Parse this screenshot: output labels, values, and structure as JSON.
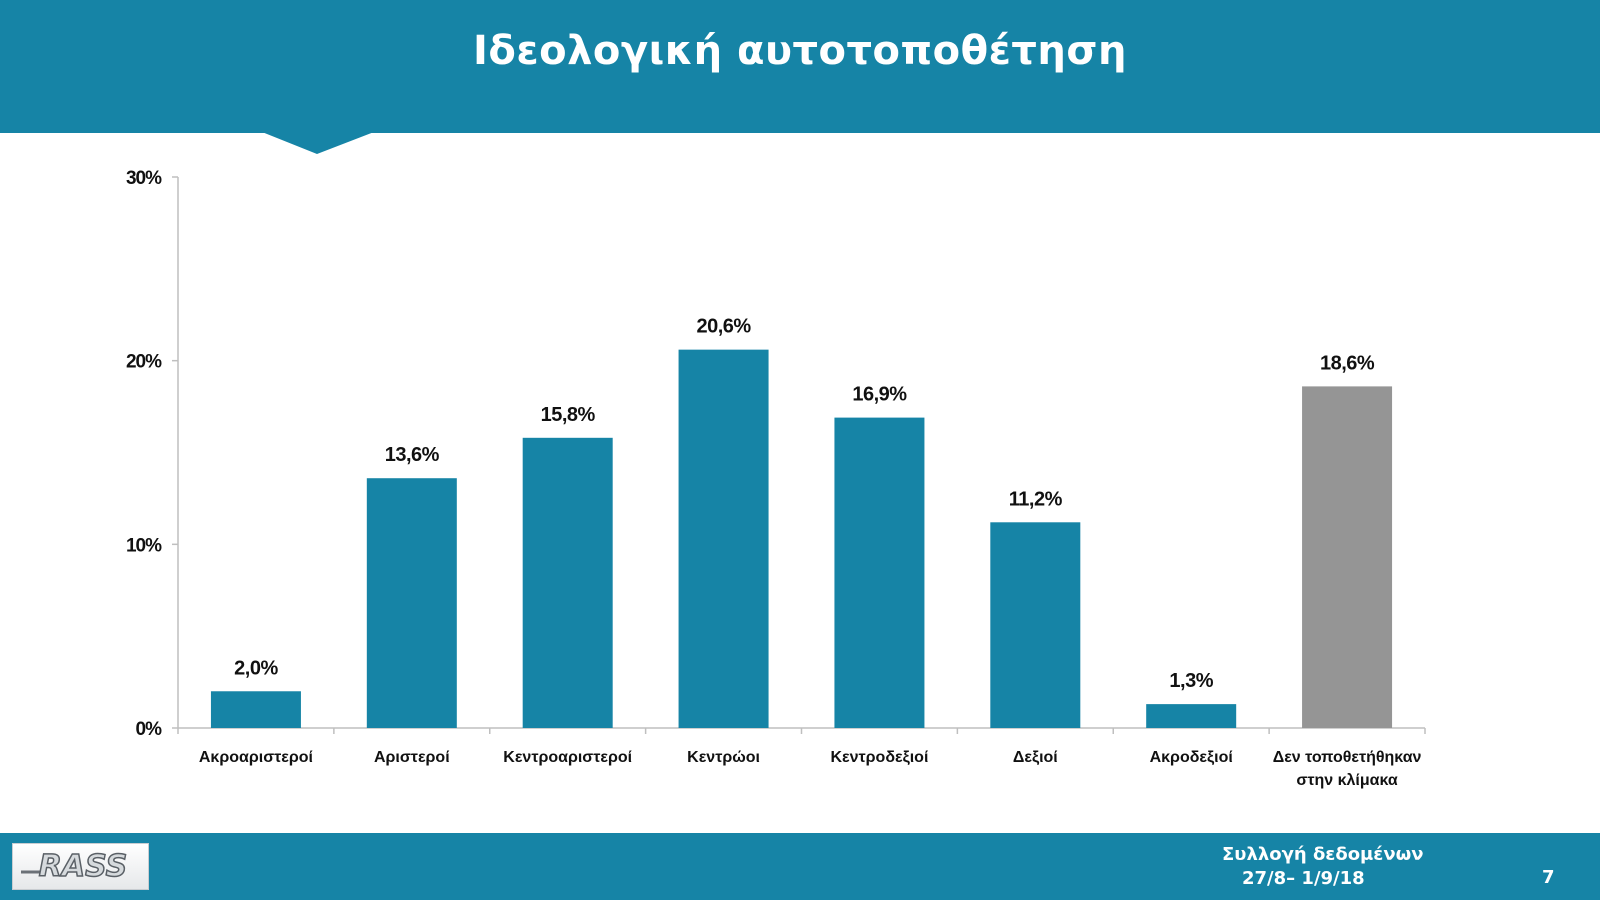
{
  "header": {
    "title": "Ιδεολογική αυτοτοποθέτηση"
  },
  "chart_data": {
    "type": "bar",
    "title": "Ιδεολογική αυτοτοποθέτηση",
    "categories": [
      [
        "Ακροαριστεροί"
      ],
      [
        "Αριστεροί"
      ],
      [
        "Κεντροαριστεροί"
      ],
      [
        "Κεντρώοι"
      ],
      [
        "Κεντροδεξιοί"
      ],
      [
        "Δεξιοί"
      ],
      [
        "Ακροδεξιοί"
      ],
      [
        "Δεν τοποθετήθηκαν",
        "στην κλίμακα"
      ]
    ],
    "values": [
      2.0,
      13.6,
      15.8,
      20.6,
      16.9,
      11.2,
      1.3,
      18.6
    ],
    "value_labels": [
      "2,0%",
      "13,6%",
      "15,8%",
      "20,6%",
      "16,9%",
      "11,2%",
      "1,3%",
      "18,6%"
    ],
    "bar_colors": [
      "#1684a6",
      "#1684a6",
      "#1684a6",
      "#1684a6",
      "#1684a6",
      "#1684a6",
      "#1684a6",
      "#959595"
    ],
    "yticks": [
      0,
      10,
      20,
      30
    ],
    "ytick_labels": [
      "0%",
      "10%",
      "20%",
      "30%"
    ],
    "ylim": [
      0,
      30
    ],
    "grid": false,
    "legend": "none"
  },
  "footer": {
    "logo_text": "RASS",
    "collection_label": "Συλλογή δεδομένων",
    "collection_dates": "27/8– 1/9/18",
    "page_number": "7"
  },
  "colors": {
    "brand": "#1684a6",
    "bar": "#1684a6",
    "bar_other": "#959595"
  }
}
